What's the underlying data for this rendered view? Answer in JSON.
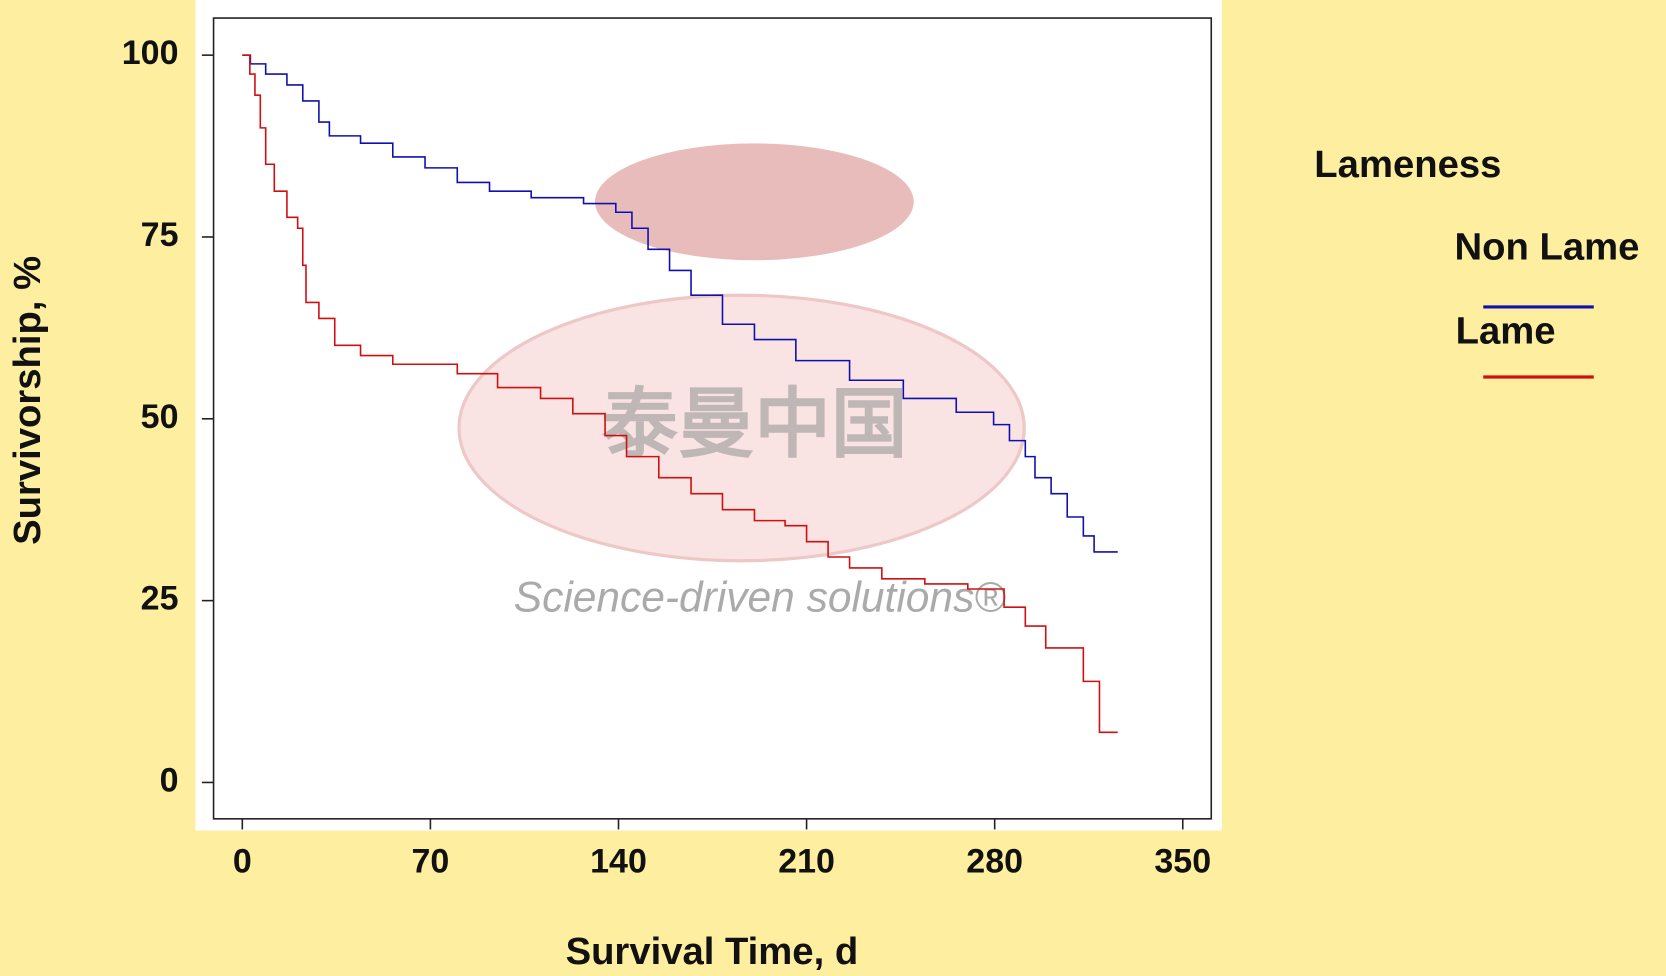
{
  "chart_data": {
    "type": "step",
    "xlabel": "Survival Time, d",
    "ylabel": "Survivorship, %",
    "legend_title": "Lameness",
    "annotations": [
      "泰曼中国",
      "Science-driven solutions®"
    ],
    "xlim": [
      -10.7,
      360.6
    ],
    "xticks": [
      0,
      70,
      140,
      210,
      280,
      350
    ],
    "ylim": [
      -5,
      105.1
    ],
    "yticks": [
      0,
      25,
      50,
      75,
      100
    ],
    "legend": "right",
    "series": [
      {
        "name": "Non Lame",
        "color": "#1010b0",
        "x": [
          0,
          3,
          8.7,
          16.6,
          22.5,
          28.5,
          32.4,
          44,
          56,
          68,
          80,
          92,
          107.5,
          127,
          139,
          145,
          151,
          159,
          167,
          178.7,
          190.6,
          206,
          226,
          246,
          265.7,
          279.6,
          285.5,
          291.4,
          295,
          301,
          307,
          313,
          317,
          325.8
        ],
        "values": [
          100,
          98.8,
          97.4,
          95.9,
          93.7,
          90.8,
          88.9,
          87.9,
          86,
          84.5,
          82.5,
          81.3,
          80.4,
          79.6,
          78.4,
          76.2,
          73.3,
          70.4,
          67,
          63,
          60.9,
          58,
          55.3,
          52.8,
          50.9,
          49.2,
          47,
          44.8,
          41.9,
          39.7,
          36.5,
          33.9,
          31.7,
          31.7
        ]
      },
      {
        "name": "Lame",
        "color": "#d01010",
        "x": [
          0,
          2.8,
          4.7,
          6.7,
          8.7,
          11.9,
          16.6,
          20.6,
          22.5,
          23.7,
          28.5,
          34.4,
          44,
          56,
          80,
          95,
          111,
          123,
          135,
          143,
          155,
          167,
          178.7,
          190.6,
          202,
          210,
          218,
          226,
          238,
          254,
          270,
          283.5,
          291.4,
          299,
          313,
          319,
          325.8
        ],
        "values": [
          100,
          97.4,
          94.5,
          90,
          85,
          81.3,
          77.7,
          76.2,
          71.1,
          66,
          63.8,
          60.1,
          58.7,
          57.5,
          56.2,
          54.3,
          52.8,
          50.7,
          47.7,
          44.8,
          41.9,
          39.7,
          37.5,
          36,
          35.3,
          33.1,
          31,
          29.5,
          28,
          27.3,
          26.6,
          24.1,
          21.5,
          18.5,
          13.9,
          6.9,
          6.9
        ]
      }
    ]
  }
}
